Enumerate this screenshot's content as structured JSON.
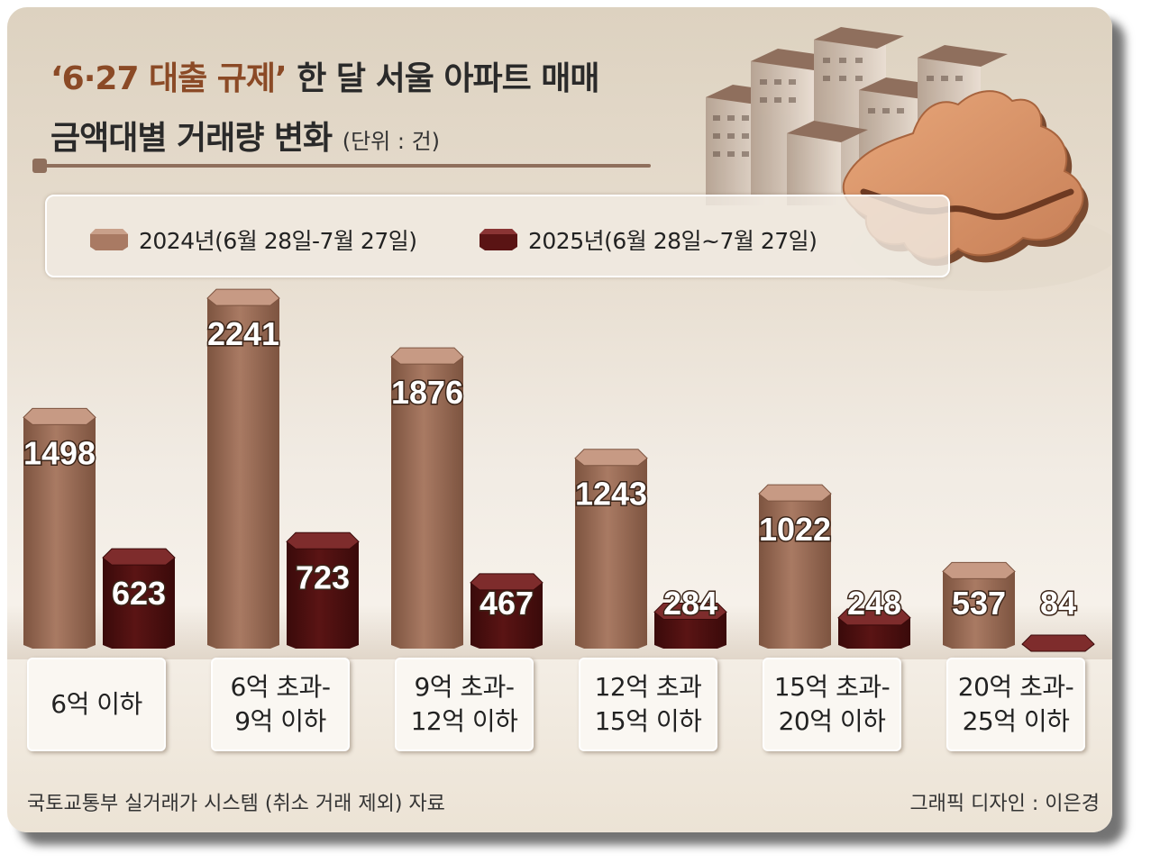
{
  "title": {
    "highlight": "‘6·27 대출 규제’",
    "line1_rest": " 한 달 서울 아파트 매매",
    "line2": "금액대별 거래량 변화",
    "unit": "(단위 : 건)"
  },
  "colors": {
    "series_2024": "#a97a63",
    "series_2025": "#5a1414",
    "accent_title": "#8b4a26"
  },
  "chart_data": {
    "type": "bar",
    "categories": [
      "6억 이하",
      "6억 초과-\n9억 이하",
      "9억 초과-\n12억 이하",
      "12억 초과\n15억 이하",
      "15억 초과-\n20억 이하",
      "20억 초과-\n25억 이하"
    ],
    "series": [
      {
        "name": "2024년(6월 28일-7월 27일)",
        "values": [
          1498,
          2241,
          1876,
          1243,
          1022,
          537
        ]
      },
      {
        "name": "2025년(6월 28일~7월 27일)",
        "values": [
          623,
          723,
          467,
          284,
          248,
          84
        ]
      }
    ],
    "ylim": [
      0,
      2400
    ],
    "grid": false,
    "legend": "top"
  },
  "footer": {
    "source": "국토교통부 실거래가 시스템 (취소 거래 제외) 자료",
    "credit": "그래픽 디자인 : 이은경"
  }
}
